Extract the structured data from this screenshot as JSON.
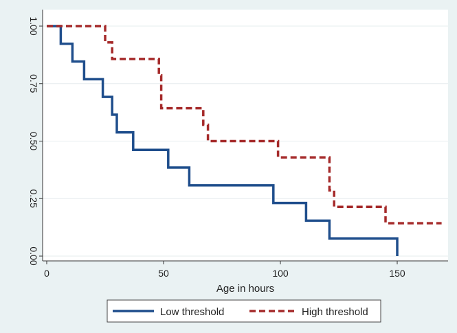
{
  "chart_data": {
    "type": "line",
    "step": true,
    "title": "",
    "xlabel": "Age in hours",
    "ylabel": "",
    "xlim": [
      0,
      170
    ],
    "ylim": [
      0,
      1
    ],
    "xticks": [
      "0",
      "50",
      "100",
      "150"
    ],
    "xtick_values": [
      0,
      50,
      100,
      150
    ],
    "yticks": [
      "0.00",
      "0.25",
      "0.50",
      "0.75",
      "1.00"
    ],
    "ytick_values": [
      0,
      0.25,
      0.5,
      0.75,
      1
    ],
    "grid": "horizontal",
    "legend_position": "bottom-outside",
    "series": [
      {
        "name": "Low threshold",
        "color": "#1f4e8c",
        "style": "solid",
        "points": [
          [
            0,
            1.0
          ],
          [
            6,
            0.923
          ],
          [
            11,
            0.846
          ],
          [
            16,
            0.769
          ],
          [
            24,
            0.692
          ],
          [
            28,
            0.615
          ],
          [
            30,
            0.538
          ],
          [
            37,
            0.462
          ],
          [
            52,
            0.385
          ],
          [
            61,
            0.308
          ],
          [
            97,
            0.231
          ],
          [
            111,
            0.154
          ],
          [
            121,
            0.077
          ],
          [
            150,
            0.0
          ]
        ]
      },
      {
        "name": "High threshold",
        "color": "#a52a2a",
        "style": "dashed",
        "points": [
          [
            0,
            1.0
          ],
          [
            25,
            0.929
          ],
          [
            28,
            0.857
          ],
          [
            48,
            0.786
          ],
          [
            49,
            0.643
          ],
          [
            67,
            0.571
          ],
          [
            69,
            0.5
          ],
          [
            99,
            0.429
          ],
          [
            121,
            0.286
          ],
          [
            123,
            0.214
          ],
          [
            145,
            0.143
          ],
          [
            169,
            0.143
          ]
        ]
      }
    ]
  },
  "legend": {
    "low_label": "Low threshold",
    "high_label": "High threshold"
  }
}
